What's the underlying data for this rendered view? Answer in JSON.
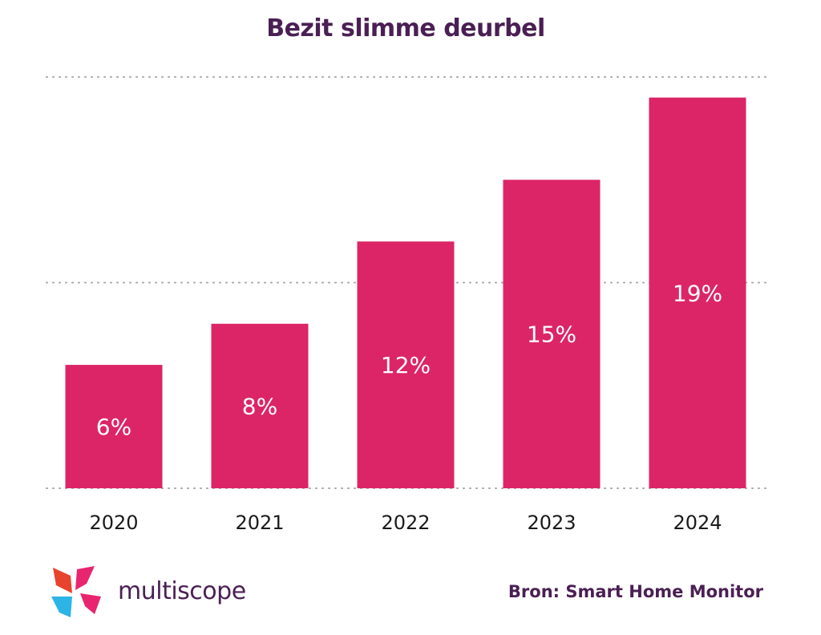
{
  "chart_data": {
    "type": "bar",
    "title": "Bezit slimme deurbel",
    "categories": [
      "2020",
      "2021",
      "2022",
      "2023",
      "2024"
    ],
    "values": [
      6,
      8,
      12,
      15,
      19
    ],
    "value_labels": [
      "6%",
      "8%",
      "12%",
      "15%",
      "19%"
    ],
    "ylim": [
      0,
      20
    ],
    "grid": true,
    "bar_color": "#dc2566"
  },
  "footer": {
    "brand": "multiscope",
    "source": "Bron: Smart Home Monitor"
  },
  "logo_colors": [
    "#e8432d",
    "#e8256f",
    "#2cb4e6"
  ]
}
